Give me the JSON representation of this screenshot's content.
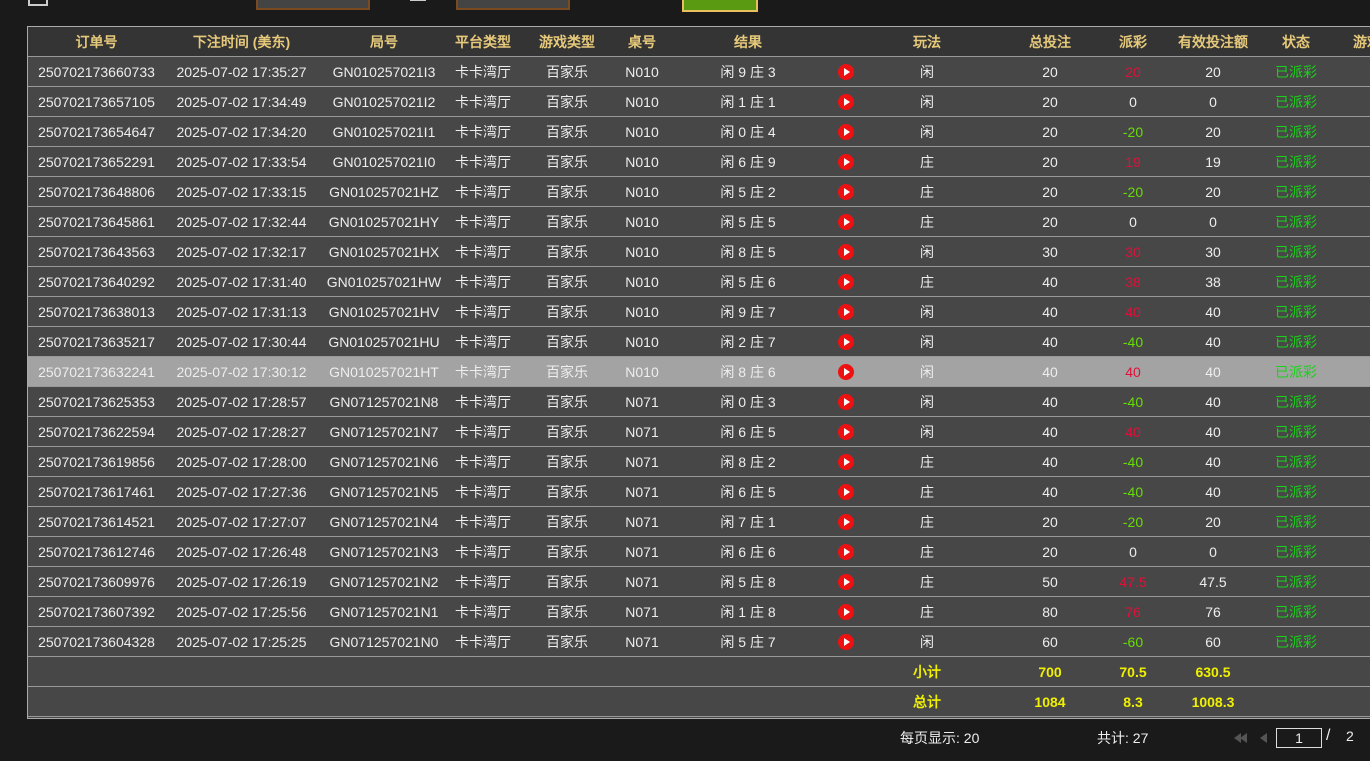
{
  "columns": [
    "订单号",
    "下注时间 (美东)",
    "局号",
    "平台类型",
    "游戏类型",
    "桌号",
    "结果",
    "",
    "玩法",
    "总投注",
    "派彩",
    "有效投注额",
    "状态",
    "游戏"
  ],
  "rows": [
    [
      "250702173660733",
      "2025-07-02 17:35:27",
      "GN010257021I3",
      "卡卡湾厅",
      "百家乐",
      "N010",
      "闲 9 庄 3",
      "闲",
      "20",
      "20",
      "20",
      "已派彩"
    ],
    [
      "250702173657105",
      "2025-07-02 17:34:49",
      "GN010257021I2",
      "卡卡湾厅",
      "百家乐",
      "N010",
      "闲 1 庄 1",
      "闲",
      "20",
      "0",
      "0",
      "已派彩"
    ],
    [
      "250702173654647",
      "2025-07-02 17:34:20",
      "GN010257021I1",
      "卡卡湾厅",
      "百家乐",
      "N010",
      "闲 0 庄 4",
      "闲",
      "20",
      "-20",
      "20",
      "已派彩"
    ],
    [
      "250702173652291",
      "2025-07-02 17:33:54",
      "GN010257021I0",
      "卡卡湾厅",
      "百家乐",
      "N010",
      "闲 6 庄 9",
      "庄",
      "20",
      "19",
      "19",
      "已派彩"
    ],
    [
      "250702173648806",
      "2025-07-02 17:33:15",
      "GN010257021HZ",
      "卡卡湾厅",
      "百家乐",
      "N010",
      "闲 5 庄 2",
      "庄",
      "20",
      "-20",
      "20",
      "已派彩"
    ],
    [
      "250702173645861",
      "2025-07-02 17:32:44",
      "GN010257021HY",
      "卡卡湾厅",
      "百家乐",
      "N010",
      "闲 5 庄 5",
      "庄",
      "20",
      "0",
      "0",
      "已派彩"
    ],
    [
      "250702173643563",
      "2025-07-02 17:32:17",
      "GN010257021HX",
      "卡卡湾厅",
      "百家乐",
      "N010",
      "闲 8 庄 5",
      "闲",
      "30",
      "30",
      "30",
      "已派彩"
    ],
    [
      "250702173640292",
      "2025-07-02 17:31:40",
      "GN010257021HW",
      "卡卡湾厅",
      "百家乐",
      "N010",
      "闲 5 庄 6",
      "庄",
      "40",
      "38",
      "38",
      "已派彩"
    ],
    [
      "250702173638013",
      "2025-07-02 17:31:13",
      "GN010257021HV",
      "卡卡湾厅",
      "百家乐",
      "N010",
      "闲 9 庄 7",
      "闲",
      "40",
      "40",
      "40",
      "已派彩"
    ],
    [
      "250702173635217",
      "2025-07-02 17:30:44",
      "GN010257021HU",
      "卡卡湾厅",
      "百家乐",
      "N010",
      "闲 2 庄 7",
      "闲",
      "40",
      "-40",
      "40",
      "已派彩"
    ],
    [
      "250702173632241",
      "2025-07-02 17:30:12",
      "GN010257021HT",
      "卡卡湾厅",
      "百家乐",
      "N010",
      "闲 8 庄 6",
      "闲",
      "40",
      "40",
      "40",
      "已派彩"
    ],
    [
      "250702173625353",
      "2025-07-02 17:28:57",
      "GN071257021N8",
      "卡卡湾厅",
      "百家乐",
      "N071",
      "闲 0 庄 3",
      "闲",
      "40",
      "-40",
      "40",
      "已派彩"
    ],
    [
      "250702173622594",
      "2025-07-02 17:28:27",
      "GN071257021N7",
      "卡卡湾厅",
      "百家乐",
      "N071",
      "闲 6 庄 5",
      "闲",
      "40",
      "40",
      "40",
      "已派彩"
    ],
    [
      "250702173619856",
      "2025-07-02 17:28:00",
      "GN071257021N6",
      "卡卡湾厅",
      "百家乐",
      "N071",
      "闲 8 庄 2",
      "庄",
      "40",
      "-40",
      "40",
      "已派彩"
    ],
    [
      "250702173617461",
      "2025-07-02 17:27:36",
      "GN071257021N5",
      "卡卡湾厅",
      "百家乐",
      "N071",
      "闲 6 庄 5",
      "庄",
      "40",
      "-40",
      "40",
      "已派彩"
    ],
    [
      "250702173614521",
      "2025-07-02 17:27:07",
      "GN071257021N4",
      "卡卡湾厅",
      "百家乐",
      "N071",
      "闲 7 庄 1",
      "庄",
      "20",
      "-20",
      "20",
      "已派彩"
    ],
    [
      "250702173612746",
      "2025-07-02 17:26:48",
      "GN071257021N3",
      "卡卡湾厅",
      "百家乐",
      "N071",
      "闲 6 庄 6",
      "庄",
      "20",
      "0",
      "0",
      "已派彩"
    ],
    [
      "250702173609976",
      "2025-07-02 17:26:19",
      "GN071257021N2",
      "卡卡湾厅",
      "百家乐",
      "N071",
      "闲 5 庄 8",
      "庄",
      "50",
      "47.5",
      "47.5",
      "已派彩"
    ],
    [
      "250702173607392",
      "2025-07-02 17:25:56",
      "GN071257021N1",
      "卡卡湾厅",
      "百家乐",
      "N071",
      "闲 1 庄 8",
      "庄",
      "80",
      "76",
      "76",
      "已派彩"
    ],
    [
      "250702173604328",
      "2025-07-02 17:25:25",
      "GN071257021N0",
      "卡卡湾厅",
      "百家乐",
      "N071",
      "闲 5 庄 7",
      "闲",
      "60",
      "-60",
      "60",
      "已派彩"
    ]
  ],
  "selected_row": 10,
  "subtotal": {
    "label": "小计",
    "total_bet": "700",
    "payout": "70.5",
    "valid_bet": "630.5"
  },
  "grand_total": {
    "label": "总计",
    "total_bet": "1084",
    "payout": "8.3",
    "valid_bet": "1008.3"
  },
  "footer": {
    "per_page": "每页显示: 20",
    "total": "共计: 27",
    "page": "1",
    "separator": "/",
    "pages": "2"
  },
  "colors": {
    "header_text": "#e6c97a",
    "payout_positive": "#e0103a",
    "payout_negative": "#66dd00",
    "status": "#19d219",
    "totals": "#f0f000"
  },
  "icons": {
    "row_action": "play-video-icon",
    "date": "calendar-icon"
  }
}
